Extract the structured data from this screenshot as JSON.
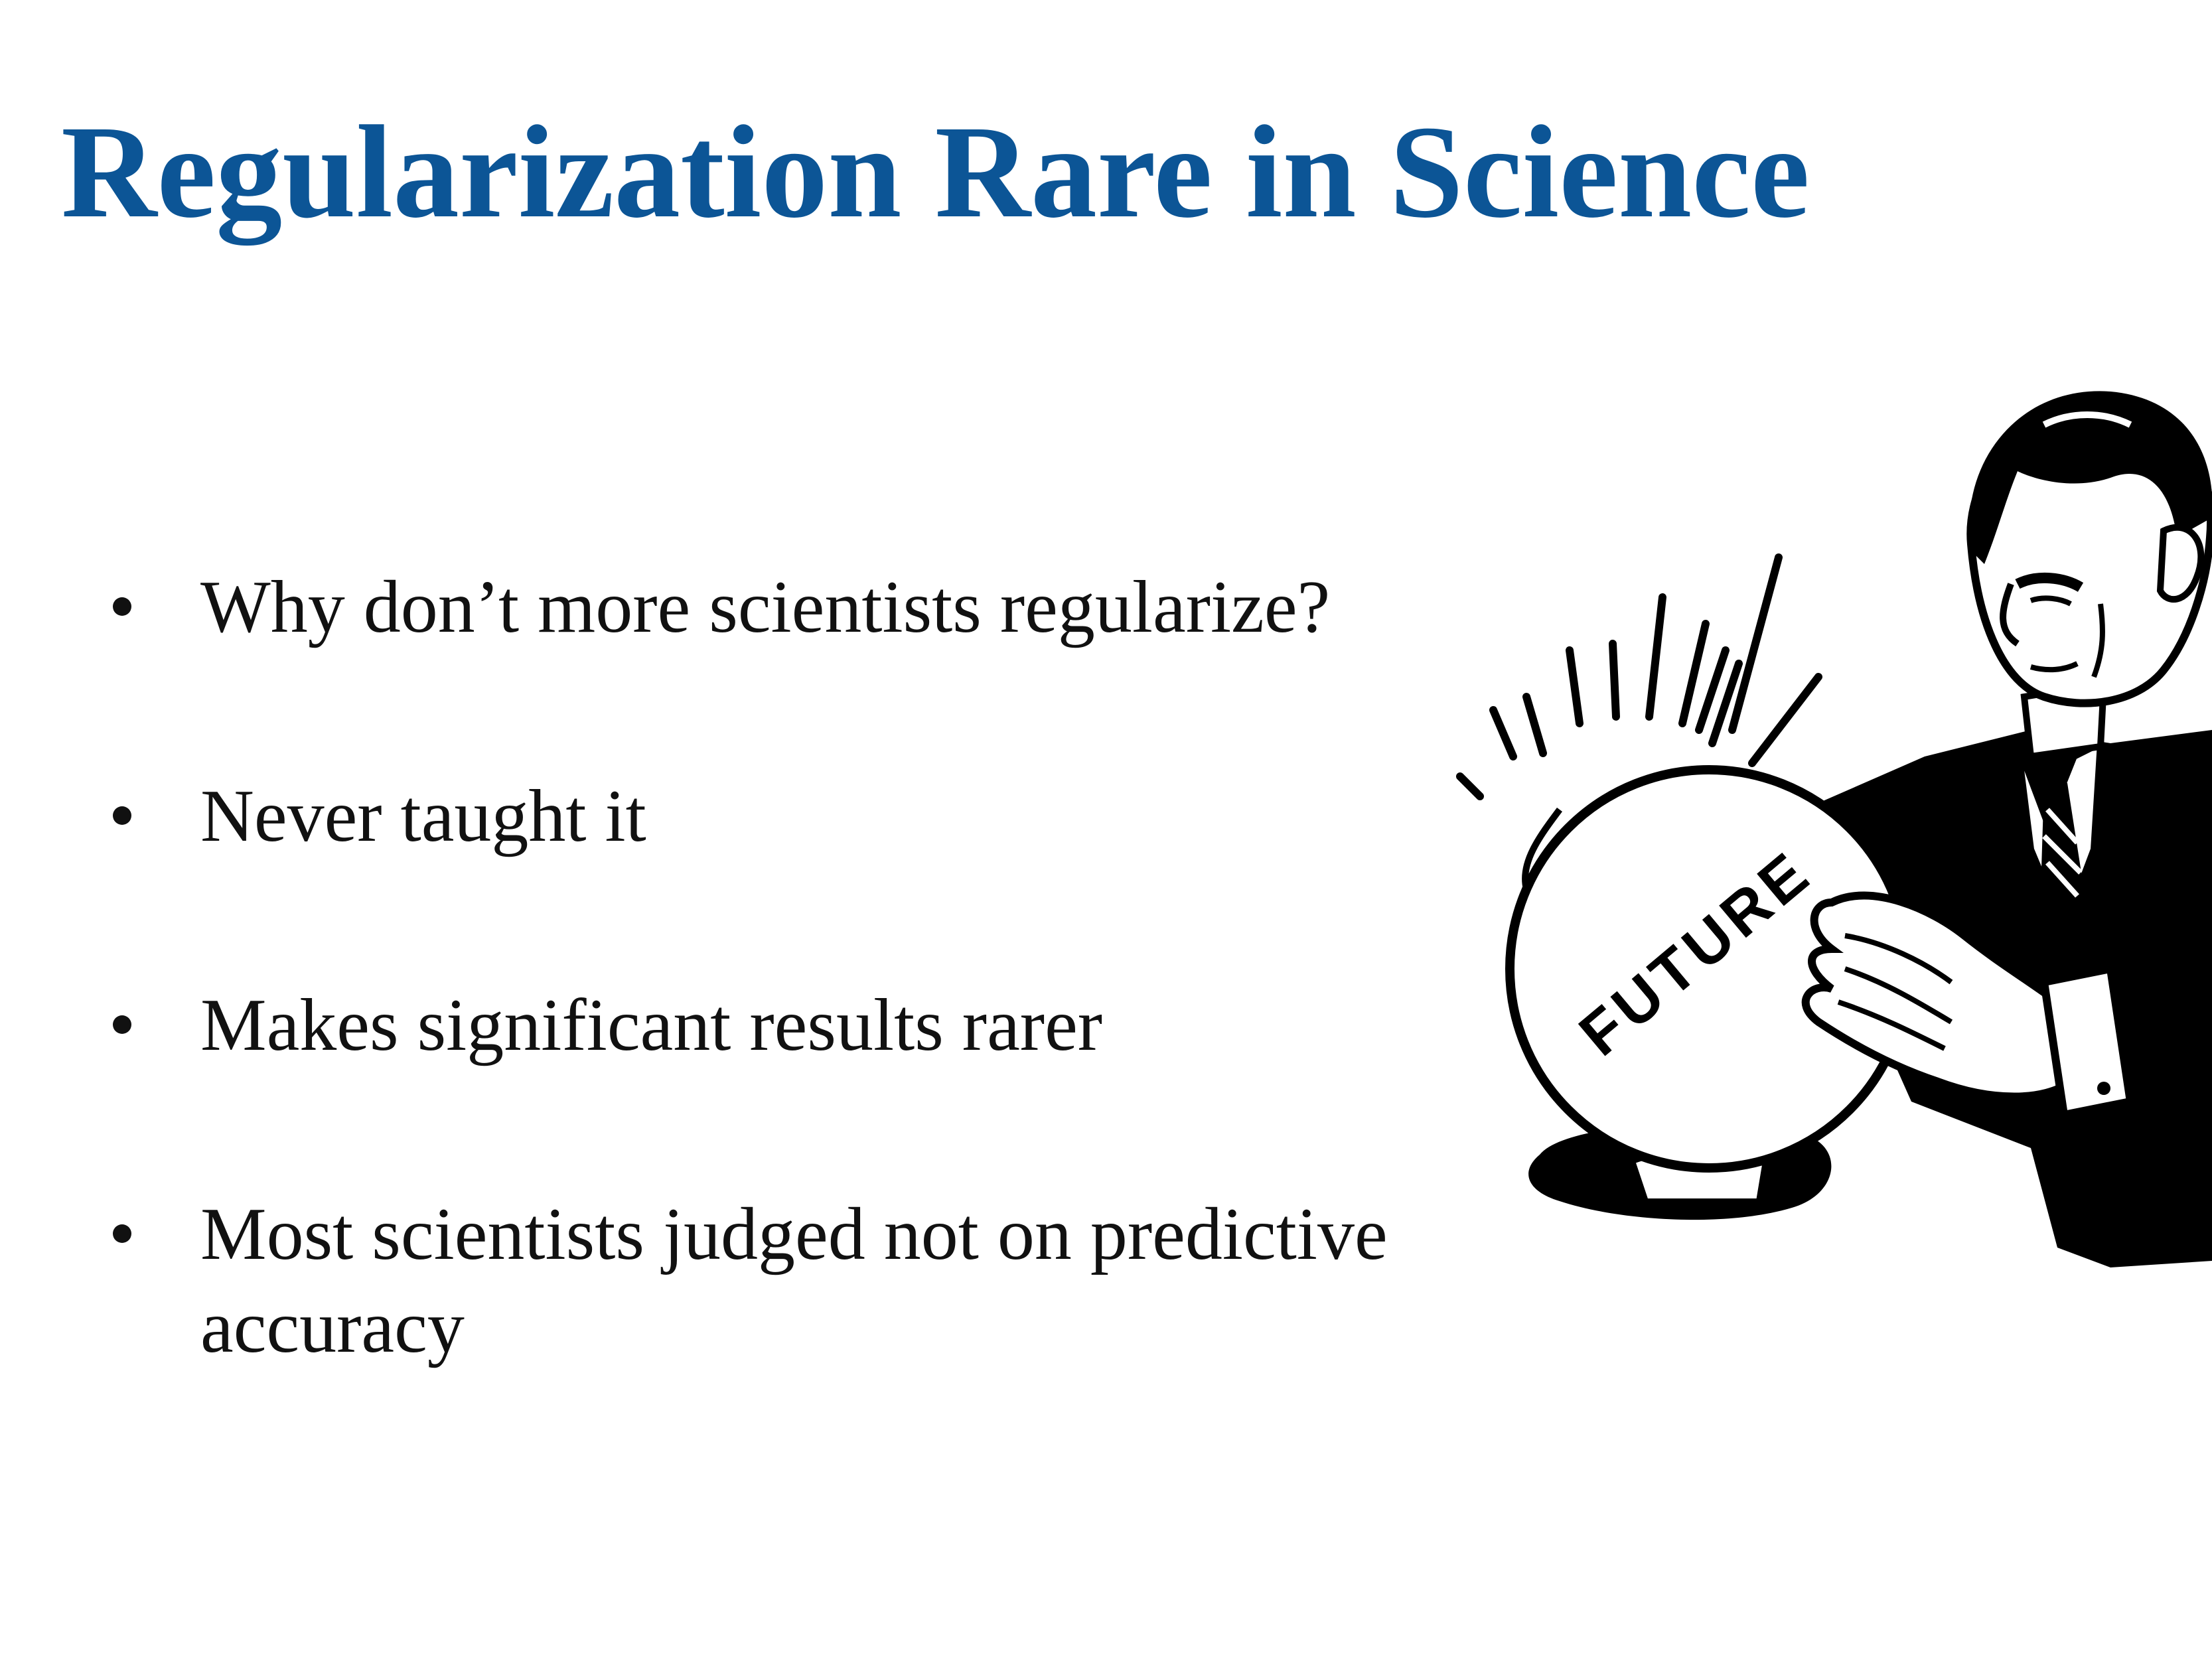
{
  "slide": {
    "title": "Regularization Rare in Science",
    "bullets": [
      {
        "text": "Why don’t more scientists regularize?"
      },
      {
        "text": "Never taught it"
      },
      {
        "text": "Makes significant results rarer"
      },
      {
        "text": "Most scientists judged not on predictive accuracy"
      }
    ],
    "illustration": {
      "icon": "fortune-teller-crystal-ball-icon",
      "ball_label": "FUTURE"
    },
    "colors": {
      "title": "#0c5596",
      "text": "#111111",
      "background": "#ffffff"
    }
  }
}
